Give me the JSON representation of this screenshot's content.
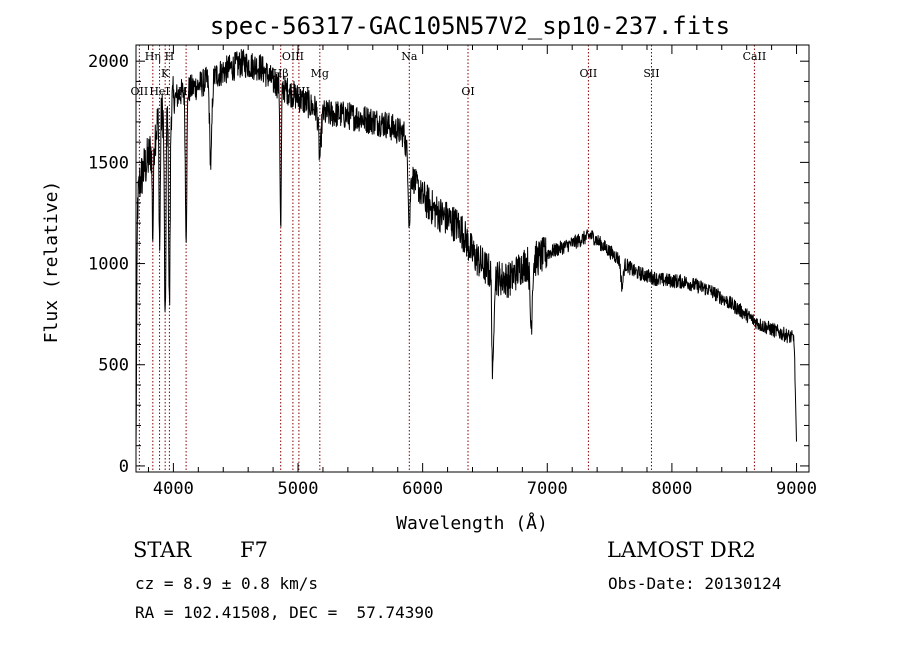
{
  "chart_data": {
    "type": "line",
    "title": "spec-56317-GAC105N57V2_sp10-237.fits",
    "xlabel": "Wavelength (Å)",
    "ylabel": "Flux (relative)",
    "xlim": [
      3700,
      9100
    ],
    "ylim": [
      -30,
      2080
    ],
    "xticks": [
      4000,
      5000,
      6000,
      7000,
      8000,
      9000
    ],
    "yticks": [
      0,
      500,
      1000,
      1500,
      2000
    ],
    "grid": false,
    "line_color": "#000000",
    "marker_color": "#8b0000",
    "lines": [
      {
        "label": "OII",
        "wavelength": 3727,
        "row": 2
      },
      {
        "label": "Hη",
        "wavelength": 3835,
        "row": 0
      },
      {
        "label": "HeI",
        "wavelength": 3889,
        "row": 2
      },
      {
        "label": "K",
        "wavelength": 3934,
        "row": 1
      },
      {
        "label": "H",
        "wavelength": 3968,
        "row": 0
      },
      {
        "label": "Hδ",
        "wavelength": 4102,
        "row": 2
      },
      {
        "label": "Hβ",
        "wavelength": 4861,
        "row": 1
      },
      {
        "label": "OIII",
        "wavelength": 4959,
        "row": 0
      },
      {
        "label": "OIII",
        "wavelength": 5007,
        "row": 2
      },
      {
        "label": "Mg",
        "wavelength": 5175,
        "row": 1
      },
      {
        "label": "Na",
        "wavelength": 5893,
        "row": 0
      },
      {
        "label": "OI",
        "wavelength": 6364,
        "row": 2
      },
      {
        "label": "OII",
        "wavelength": 7330,
        "row": 1
      },
      {
        "label": "SII",
        "wavelength": 7836,
        "row": 1
      },
      {
        "label": "CaII",
        "wavelength": 8662,
        "row": 0
      }
    ],
    "spectrum_anchors": [
      [
        3700,
        50
      ],
      [
        3712,
        1280
      ],
      [
        3730,
        1400
      ],
      [
        3760,
        1460
      ],
      [
        3800,
        1520
      ],
      [
        3840,
        1600
      ],
      [
        3880,
        1720
      ],
      [
        3960,
        1780
      ],
      [
        4050,
        1840
      ],
      [
        4200,
        1880
      ],
      [
        4400,
        1950
      ],
      [
        4550,
        1990
      ],
      [
        4700,
        1970
      ],
      [
        4800,
        1900
      ],
      [
        4900,
        1860
      ],
      [
        5000,
        1820
      ],
      [
        5100,
        1780
      ],
      [
        5200,
        1740
      ],
      [
        5300,
        1740
      ],
      [
        5500,
        1720
      ],
      [
        5700,
        1690
      ],
      [
        5850,
        1640
      ],
      [
        5900,
        1450
      ],
      [
        6000,
        1330
      ],
      [
        6100,
        1260
      ],
      [
        6300,
        1180
      ],
      [
        6400,
        1050
      ],
      [
        6500,
        980
      ],
      [
        6600,
        930
      ],
      [
        6700,
        920
      ],
      [
        6800,
        990
      ],
      [
        7000,
        1050
      ],
      [
        7200,
        1100
      ],
      [
        7350,
        1140
      ],
      [
        7500,
        1060
      ],
      [
        7700,
        960
      ],
      [
        7900,
        920
      ],
      [
        8100,
        910
      ],
      [
        8300,
        870
      ],
      [
        8500,
        790
      ],
      [
        8700,
        700
      ],
      [
        8900,
        650
      ],
      [
        8980,
        630
      ],
      [
        9000,
        120
      ]
    ],
    "absorption_features": [
      {
        "wavelength": 3934,
        "depth": 1100,
        "width": 6
      },
      {
        "wavelength": 3968,
        "depth": 1000,
        "width": 6
      },
      {
        "wavelength": 3890,
        "depth": 650,
        "width": 5
      },
      {
        "wavelength": 3835,
        "depth": 450,
        "width": 5
      },
      {
        "wavelength": 4102,
        "depth": 700,
        "width": 6
      },
      {
        "wavelength": 4300,
        "depth": 420,
        "width": 9
      },
      {
        "wavelength": 4861,
        "depth": 720,
        "width": 5
      },
      {
        "wavelength": 5175,
        "depth": 220,
        "width": 10
      },
      {
        "wavelength": 5893,
        "depth": 280,
        "width": 7
      },
      {
        "wavelength": 6563,
        "depth": 520,
        "width": 7
      },
      {
        "wavelength": 6870,
        "depth": 320,
        "width": 9
      },
      {
        "wavelength": 7600,
        "depth": 120,
        "width": 10
      }
    ]
  },
  "info": {
    "object_class": "STAR",
    "subclass": "F7",
    "survey": "LAMOST DR2",
    "cz": "cz = 8.9 ± 0.8 km/s",
    "obs_date": "Obs-Date: 20130124",
    "coords": "RA = 102.41508, DEC =  57.74390"
  }
}
